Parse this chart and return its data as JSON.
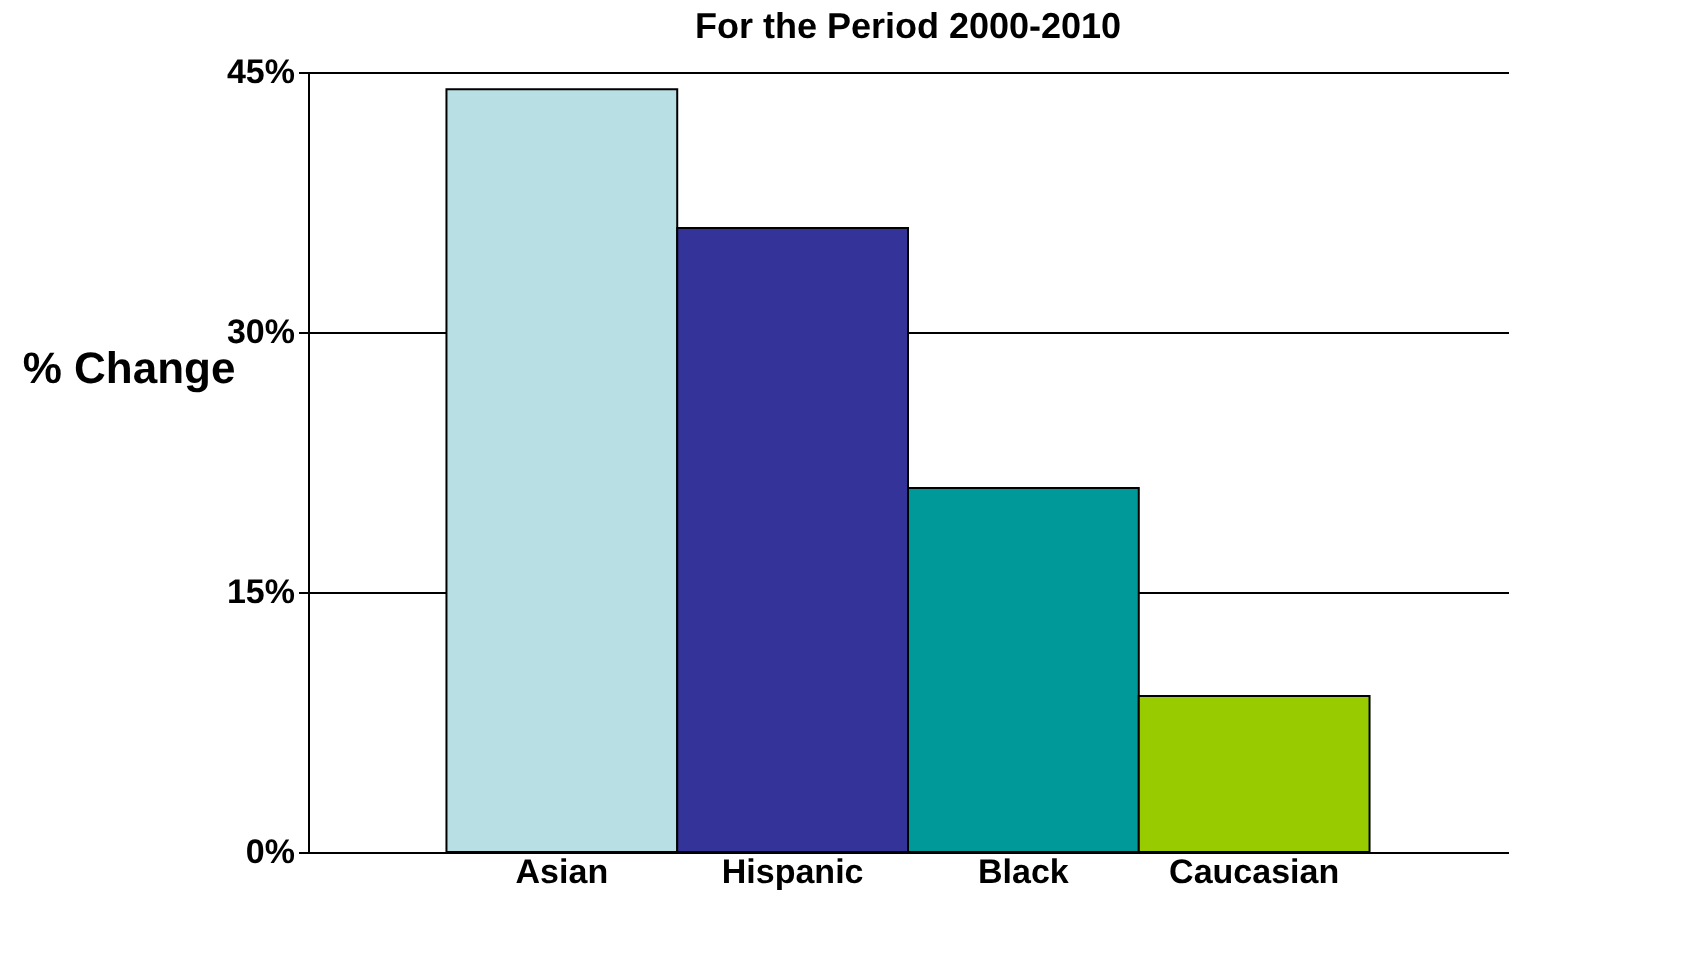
{
  "chart_data": {
    "type": "bar",
    "title": "For the Period 2000-2010",
    "ylabel": "% Change",
    "categories": [
      "Asian",
      "Hispanic",
      "Black",
      "Caucasian"
    ],
    "values": [
      44,
      36,
      21,
      9
    ],
    "colors": [
      "#b8dfe3",
      "#333399",
      "#009999",
      "#99cc00"
    ],
    "ylim": [
      0,
      45
    ],
    "yticks": [
      {
        "value": 0,
        "label": "0%"
      },
      {
        "value": 15,
        "label": "15%"
      },
      {
        "value": 30,
        "label": "30%"
      },
      {
        "value": 45,
        "label": "45%"
      }
    ],
    "grid": "y"
  }
}
